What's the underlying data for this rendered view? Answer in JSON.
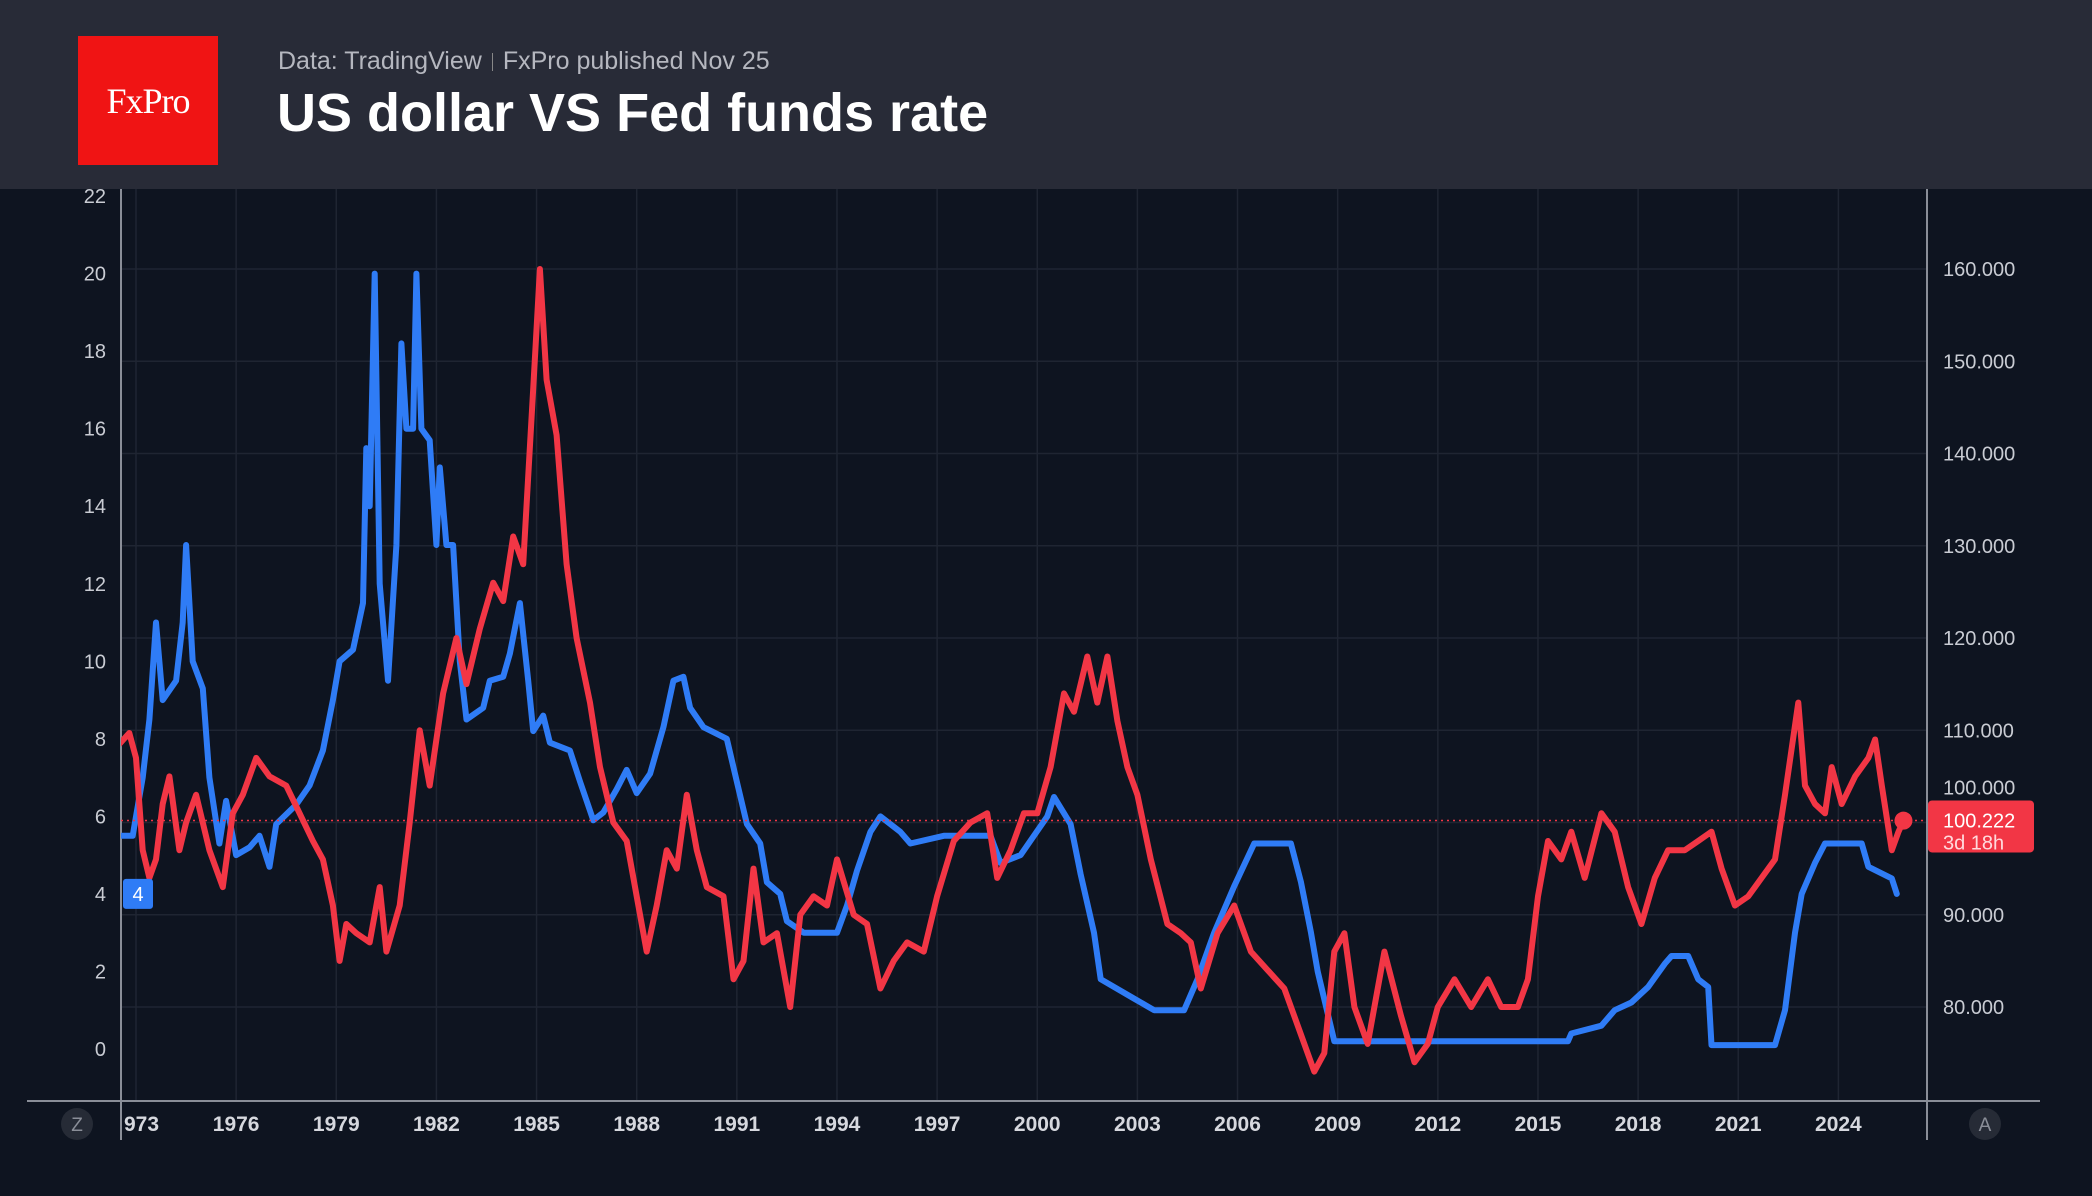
{
  "header": {
    "logo_text": "FxPro",
    "source": "Data: TradingView",
    "published": "FxPro published Nov 25",
    "title": "US dollar VS Fed funds rate"
  },
  "controls": {
    "left_button": "Z",
    "right_button": "A"
  },
  "colors": {
    "fed_rate": "#2f7cf6",
    "dollar_index": "#f23645",
    "background": "#0e1420",
    "header": "#282b37"
  },
  "price_label": {
    "value": "100.222",
    "countdown": "3d 18h"
  },
  "fed_label": "4",
  "chart_data": {
    "type": "line",
    "title": "US dollar VS Fed funds rate",
    "xlim": [
      1972.5,
      2026.9
    ],
    "x_ticks": [
      "973",
      "1976",
      "1979",
      "1982",
      "1985",
      "1988",
      "1991",
      "1994",
      "1997",
      "2000",
      "2003",
      "2006",
      "2009",
      "2012",
      "2015",
      "2018",
      "2021",
      "2024"
    ],
    "left_axis": {
      "ylim": [
        -1.2,
        22.5
      ],
      "ticks": [
        "22",
        "20",
        "18",
        "16",
        "14",
        "12",
        "10",
        "8",
        "6",
        "4",
        "2",
        "0"
      ]
    },
    "right_axis": {
      "ylim": [
        70.8,
        172.2
      ],
      "ticks": [
        "160.000",
        "150.000",
        "140.000",
        "130.000",
        "120.000",
        "110.000",
        "100.000",
        "90.000",
        "80.000"
      ]
    },
    "grid": true,
    "series": [
      {
        "axis": "left",
        "color": "#2f7cf6",
        "points": [
          [
            1972.5,
            5.5
          ],
          [
            1972.9,
            5.5
          ],
          [
            1973.2,
            7
          ],
          [
            1973.4,
            8.5
          ],
          [
            1973.6,
            11
          ],
          [
            1973.8,
            9
          ],
          [
            1974.2,
            9.5
          ],
          [
            1974.4,
            11
          ],
          [
            1974.5,
            13
          ],
          [
            1974.7,
            10
          ],
          [
            1975.0,
            9.3
          ],
          [
            1975.2,
            7
          ],
          [
            1975.5,
            5.3
          ],
          [
            1975.7,
            6.4
          ],
          [
            1976.0,
            5
          ],
          [
            1976.4,
            5.2
          ],
          [
            1976.7,
            5.5
          ],
          [
            1977.0,
            4.7
          ],
          [
            1977.2,
            5.8
          ],
          [
            1977.8,
            6.3
          ],
          [
            1978.2,
            6.8
          ],
          [
            1978.6,
            7.7
          ],
          [
            1978.9,
            9
          ],
          [
            1979.1,
            10
          ],
          [
            1979.5,
            10.3
          ],
          [
            1979.8,
            11.5
          ],
          [
            1979.9,
            15.5
          ],
          [
            1980.0,
            14
          ],
          [
            1980.15,
            20
          ],
          [
            1980.3,
            12
          ],
          [
            1980.55,
            9.5
          ],
          [
            1980.8,
            13
          ],
          [
            1980.95,
            18.2
          ],
          [
            1981.1,
            16
          ],
          [
            1981.3,
            16
          ],
          [
            1981.4,
            20
          ],
          [
            1981.55,
            16
          ],
          [
            1981.8,
            15.7
          ],
          [
            1982.0,
            13
          ],
          [
            1982.1,
            15
          ],
          [
            1982.3,
            13
          ],
          [
            1982.5,
            13
          ],
          [
            1982.7,
            10
          ],
          [
            1982.9,
            8.5
          ],
          [
            1983.4,
            8.8
          ],
          [
            1983.6,
            9.5
          ],
          [
            1984.0,
            9.6
          ],
          [
            1984.2,
            10.2
          ],
          [
            1984.5,
            11.5
          ],
          [
            1984.75,
            9.5
          ],
          [
            1984.9,
            8.2
          ],
          [
            1985.2,
            8.6
          ],
          [
            1985.4,
            7.9
          ],
          [
            1986.0,
            7.7
          ],
          [
            1986.3,
            6.9
          ],
          [
            1986.7,
            5.9
          ],
          [
            1987.0,
            6.1
          ],
          [
            1987.4,
            6.7
          ],
          [
            1987.7,
            7.2
          ],
          [
            1988.0,
            6.6
          ],
          [
            1988.4,
            7.1
          ],
          [
            1988.8,
            8.3
          ],
          [
            1989.1,
            9.5
          ],
          [
            1989.4,
            9.6
          ],
          [
            1989.6,
            8.8
          ],
          [
            1990.0,
            8.3
          ],
          [
            1990.7,
            8.0
          ],
          [
            1991.0,
            6.9
          ],
          [
            1991.3,
            5.8
          ],
          [
            1991.7,
            5.3
          ],
          [
            1991.9,
            4.3
          ],
          [
            1992.3,
            4.0
          ],
          [
            1992.5,
            3.3
          ],
          [
            1993.0,
            3.0
          ],
          [
            1994.0,
            3.0
          ],
          [
            1994.3,
            3.7
          ],
          [
            1994.6,
            4.6
          ],
          [
            1995.0,
            5.6
          ],
          [
            1995.3,
            6.0
          ],
          [
            1995.9,
            5.6
          ],
          [
            1996.2,
            5.3
          ],
          [
            1997.2,
            5.5
          ],
          [
            1998.6,
            5.5
          ],
          [
            1998.9,
            4.8
          ],
          [
            1999.5,
            5.0
          ],
          [
            1999.9,
            5.5
          ],
          [
            2000.3,
            6.0
          ],
          [
            2000.5,
            6.5
          ],
          [
            2001.0,
            5.8
          ],
          [
            2001.3,
            4.5
          ],
          [
            2001.7,
            3.0
          ],
          [
            2001.9,
            1.8
          ],
          [
            2002.9,
            1.3
          ],
          [
            2003.5,
            1.0
          ],
          [
            2004.4,
            1.0
          ],
          [
            2004.8,
            1.8
          ],
          [
            2005.3,
            3.0
          ],
          [
            2005.9,
            4.2
          ],
          [
            2006.5,
            5.3
          ],
          [
            2007.6,
            5.3
          ],
          [
            2007.9,
            4.3
          ],
          [
            2008.2,
            3.0
          ],
          [
            2008.4,
            2.0
          ],
          [
            2008.9,
            0.2
          ],
          [
            2015.9,
            0.2
          ],
          [
            2016.0,
            0.4
          ],
          [
            2016.9,
            0.6
          ],
          [
            2017.3,
            1.0
          ],
          [
            2017.8,
            1.2
          ],
          [
            2018.3,
            1.6
          ],
          [
            2018.8,
            2.2
          ],
          [
            2019.0,
            2.4
          ],
          [
            2019.5,
            2.4
          ],
          [
            2019.8,
            1.8
          ],
          [
            2020.1,
            1.6
          ],
          [
            2020.2,
            0.1
          ],
          [
            2022.1,
            0.1
          ],
          [
            2022.4,
            1.0
          ],
          [
            2022.7,
            3.0
          ],
          [
            2022.9,
            4.0
          ],
          [
            2023.3,
            4.8
          ],
          [
            2023.6,
            5.3
          ],
          [
            2024.7,
            5.3
          ],
          [
            2024.9,
            4.7
          ],
          [
            2025.6,
            4.4
          ],
          [
            2025.75,
            4.0
          ]
        ]
      },
      {
        "axis": "right",
        "color": "#f23645",
        "points": [
          [
            1972.5,
            108.5
          ],
          [
            1972.8,
            109.7
          ],
          [
            1973.0,
            107
          ],
          [
            1973.2,
            97
          ],
          [
            1973.4,
            94
          ],
          [
            1973.6,
            96
          ],
          [
            1973.8,
            102
          ],
          [
            1974.0,
            105
          ],
          [
            1974.3,
            97
          ],
          [
            1974.5,
            100
          ],
          [
            1974.8,
            103
          ],
          [
            1975.2,
            97
          ],
          [
            1975.6,
            93
          ],
          [
            1975.9,
            101
          ],
          [
            1976.2,
            103
          ],
          [
            1976.6,
            107
          ],
          [
            1977.0,
            105
          ],
          [
            1977.5,
            104
          ],
          [
            1977.9,
            101
          ],
          [
            1978.3,
            98
          ],
          [
            1978.6,
            96
          ],
          [
            1978.9,
            91
          ],
          [
            1979.1,
            85
          ],
          [
            1979.3,
            89
          ],
          [
            1979.6,
            88
          ],
          [
            1980.0,
            87
          ],
          [
            1980.3,
            93
          ],
          [
            1980.5,
            86
          ],
          [
            1980.9,
            91
          ],
          [
            1981.2,
            100
          ],
          [
            1981.5,
            110
          ],
          [
            1981.8,
            104
          ],
          [
            1982.2,
            114
          ],
          [
            1982.6,
            120
          ],
          [
            1982.9,
            115
          ],
          [
            1983.3,
            121
          ],
          [
            1983.7,
            126
          ],
          [
            1984.0,
            124
          ],
          [
            1984.3,
            131
          ],
          [
            1984.6,
            128
          ],
          [
            1984.9,
            147
          ],
          [
            1985.1,
            160
          ],
          [
            1985.3,
            148
          ],
          [
            1985.6,
            142
          ],
          [
            1985.9,
            128
          ],
          [
            1986.2,
            120
          ],
          [
            1986.6,
            113
          ],
          [
            1986.9,
            106
          ],
          [
            1987.3,
            100
          ],
          [
            1987.7,
            98
          ],
          [
            1988.0,
            92
          ],
          [
            1988.3,
            86
          ],
          [
            1988.6,
            91
          ],
          [
            1988.9,
            97
          ],
          [
            1989.2,
            95
          ],
          [
            1989.5,
            103
          ],
          [
            1989.8,
            97
          ],
          [
            1990.1,
            93
          ],
          [
            1990.6,
            92
          ],
          [
            1990.9,
            83
          ],
          [
            1991.2,
            85
          ],
          [
            1991.5,
            95
          ],
          [
            1991.8,
            87
          ],
          [
            1992.2,
            88
          ],
          [
            1992.6,
            80
          ],
          [
            1992.9,
            90
          ],
          [
            1993.3,
            92
          ],
          [
            1993.7,
            91
          ],
          [
            1994.0,
            96
          ],
          [
            1994.5,
            90
          ],
          [
            1994.9,
            89
          ],
          [
            1995.3,
            82
          ],
          [
            1995.7,
            85
          ],
          [
            1996.1,
            87
          ],
          [
            1996.6,
            86
          ],
          [
            1997.0,
            92
          ],
          [
            1997.5,
            98
          ],
          [
            1998.0,
            100
          ],
          [
            1998.5,
            101
          ],
          [
            1998.8,
            94
          ],
          [
            1999.2,
            97
          ],
          [
            1999.6,
            101
          ],
          [
            2000.0,
            101
          ],
          [
            2000.4,
            106
          ],
          [
            2000.8,
            114
          ],
          [
            2001.1,
            112
          ],
          [
            2001.5,
            118
          ],
          [
            2001.8,
            113
          ],
          [
            2002.1,
            118
          ],
          [
            2002.4,
            111
          ],
          [
            2002.7,
            106
          ],
          [
            2003.0,
            103
          ],
          [
            2003.4,
            96
          ],
          [
            2003.9,
            89
          ],
          [
            2004.3,
            88
          ],
          [
            2004.6,
            87
          ],
          [
            2004.9,
            82
          ],
          [
            2005.4,
            88
          ],
          [
            2005.9,
            91
          ],
          [
            2006.4,
            86
          ],
          [
            2006.9,
            84
          ],
          [
            2007.4,
            82
          ],
          [
            2007.9,
            77
          ],
          [
            2008.3,
            73
          ],
          [
            2008.6,
            75
          ],
          [
            2008.9,
            86
          ],
          [
            2009.2,
            88
          ],
          [
            2009.5,
            80
          ],
          [
            2009.9,
            76
          ],
          [
            2010.4,
            86
          ],
          [
            2010.9,
            79
          ],
          [
            2011.3,
            74
          ],
          [
            2011.7,
            76
          ],
          [
            2012.0,
            80
          ],
          [
            2012.5,
            83
          ],
          [
            2013.0,
            80
          ],
          [
            2013.5,
            83
          ],
          [
            2013.9,
            80
          ],
          [
            2014.4,
            80
          ],
          [
            2014.7,
            83
          ],
          [
            2015.0,
            92
          ],
          [
            2015.3,
            98
          ],
          [
            2015.7,
            96
          ],
          [
            2016.0,
            99
          ],
          [
            2016.4,
            94
          ],
          [
            2016.9,
            101
          ],
          [
            2017.3,
            99
          ],
          [
            2017.7,
            93
          ],
          [
            2018.1,
            89
          ],
          [
            2018.5,
            94
          ],
          [
            2018.9,
            97
          ],
          [
            2019.4,
            97
          ],
          [
            2019.8,
            98
          ],
          [
            2020.2,
            99
          ],
          [
            2020.5,
            95
          ],
          [
            2020.9,
            91
          ],
          [
            2021.3,
            92
          ],
          [
            2021.7,
            94
          ],
          [
            2022.1,
            96
          ],
          [
            2022.4,
            103
          ],
          [
            2022.8,
            113
          ],
          [
            2023.0,
            104
          ],
          [
            2023.3,
            102
          ],
          [
            2023.6,
            101
          ],
          [
            2023.8,
            106
          ],
          [
            2024.1,
            102
          ],
          [
            2024.5,
            105
          ],
          [
            2024.9,
            107
          ],
          [
            2025.1,
            109
          ],
          [
            2025.3,
            104
          ],
          [
            2025.6,
            97
          ],
          [
            2025.8,
            99
          ],
          [
            2025.95,
            100.2
          ]
        ]
      }
    ]
  }
}
